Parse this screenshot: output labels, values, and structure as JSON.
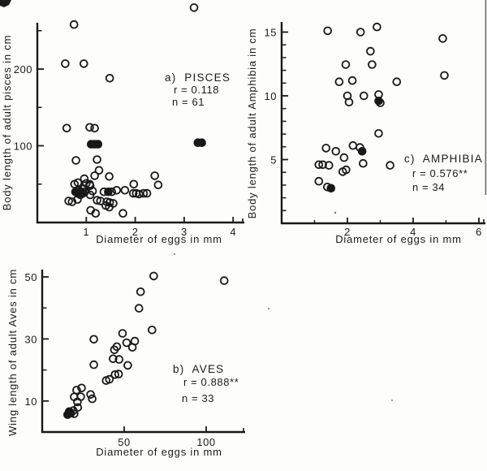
{
  "figure": {
    "background": "#fdfdfc",
    "ink_color": "#181818"
  },
  "chart_data": [
    {
      "id": "pisces",
      "type": "scatter",
      "panel_label": "a)  PISCES",
      "r_label": "r = 0.118",
      "n_label": "n = 61",
      "xlabel": "Diameter of eggs in mm",
      "ylabel": "Body length of adult pisces in cm",
      "xlim": [
        0,
        4.25
      ],
      "ylim": [
        0,
        260
      ],
      "xticks": [
        1,
        2,
        3,
        4
      ],
      "xticks_minor": [],
      "yticks_major": [
        100,
        200
      ],
      "yticks_minor": [
        50,
        150,
        250
      ],
      "legend_position": "none",
      "grid": false,
      "points": [
        [
          0.75,
          258
        ],
        [
          3.2,
          280
        ],
        [
          0.57,
          207
        ],
        [
          0.95,
          207
        ],
        [
          1.48,
          188
        ],
        [
          0.6,
          123
        ],
        [
          1.07,
          124
        ],
        [
          1.17,
          123
        ],
        [
          1.1,
          102,
          1
        ],
        [
          1.17,
          102,
          1
        ],
        [
          1.24,
          102,
          1
        ],
        [
          3.28,
          104,
          1
        ],
        [
          3.36,
          104,
          1
        ],
        [
          0.79,
          81
        ],
        [
          1.22,
          82
        ],
        [
          1.26,
          68
        ],
        [
          1.17,
          61
        ],
        [
          1.47,
          60
        ],
        [
          2.4,
          61
        ],
        [
          0.96,
          57
        ],
        [
          0.83,
          52
        ],
        [
          0.76,
          50
        ],
        [
          1.0,
          51
        ],
        [
          1.07,
          50
        ],
        [
          1.97,
          50
        ],
        [
          2.47,
          49
        ],
        [
          1.08,
          48
        ],
        [
          0.78,
          40,
          1
        ],
        [
          0.83,
          38,
          1
        ],
        [
          0.88,
          40,
          1
        ],
        [
          0.93,
          38,
          1
        ],
        [
          0.97,
          40
        ],
        [
          0.85,
          42
        ],
        [
          0.92,
          44
        ],
        [
          0.88,
          36
        ],
        [
          1.13,
          41
        ],
        [
          1.08,
          36
        ],
        [
          1.36,
          40
        ],
        [
          1.45,
          40,
          1
        ],
        [
          1.52,
          40
        ],
        [
          1.62,
          42
        ],
        [
          1.79,
          42
        ],
        [
          1.96,
          38
        ],
        [
          2.02,
          38
        ],
        [
          2.08,
          37
        ],
        [
          2.17,
          38
        ],
        [
          2.24,
          38
        ],
        [
          0.64,
          28
        ],
        [
          0.71,
          27
        ],
        [
          0.82,
          30
        ],
        [
          1.22,
          29
        ],
        [
          1.29,
          28
        ],
        [
          1.42,
          27
        ],
        [
          1.48,
          26
        ],
        [
          1.55,
          25
        ],
        [
          1.4,
          22
        ],
        [
          1.47,
          20
        ],
        [
          1.09,
          16
        ],
        [
          1.19,
          12
        ],
        [
          1.75,
          12
        ],
        [
          0.95,
          44
        ]
      ]
    },
    {
      "id": "aves",
      "type": "scatter",
      "panel_label": "b)  AVES",
      "r_label": "r = 0.888**",
      "n_label": "n = 33",
      "xlabel": "Diameter of eggs in mm",
      "ylabel": "Wing length of adult Aves in cm",
      "xlim": [
        0,
        124
      ],
      "ylim": [
        0,
        52
      ],
      "xticks": [
        50,
        100
      ],
      "xticks_minor": [],
      "yticks_major": [
        10,
        30,
        50
      ],
      "yticks_minor": [
        20,
        40
      ],
      "legend_position": "none",
      "grid": false,
      "points": [
        [
          68,
          50.3
        ],
        [
          111,
          48.8
        ],
        [
          60,
          45.2
        ],
        [
          59,
          39.9
        ],
        [
          67,
          32.9
        ],
        [
          49,
          31.8
        ],
        [
          31.5,
          29.9
        ],
        [
          51.5,
          28.8
        ],
        [
          56.5,
          29.3
        ],
        [
          45.5,
          27.5
        ],
        [
          55,
          27.3
        ],
        [
          44,
          26.5
        ],
        [
          31.5,
          21.7
        ],
        [
          43.2,
          23.6
        ],
        [
          46.9,
          23.4
        ],
        [
          52.2,
          21.5
        ],
        [
          41,
          17.0
        ],
        [
          44.4,
          18.5
        ],
        [
          46.6,
          18.7
        ],
        [
          39,
          16.6
        ],
        [
          21,
          13.5
        ],
        [
          24,
          14.2
        ],
        [
          19.5,
          11.3
        ],
        [
          23.5,
          11.4
        ],
        [
          29.5,
          12.1
        ],
        [
          30.5,
          10.7
        ],
        [
          21.5,
          9.7
        ],
        [
          21.7,
          7.9
        ],
        [
          15.5,
          5.6,
          1
        ],
        [
          16.5,
          6.6,
          1
        ],
        [
          17.5,
          6.1,
          1
        ],
        [
          19,
          6.9
        ],
        [
          19.5,
          5.9
        ]
      ]
    },
    {
      "id": "amphibia",
      "type": "scatter",
      "panel_label": "c)  AMPHIBIA",
      "r_label": "r = 0.576**",
      "n_label": "n = 34",
      "xlabel": "Diameter of eggs in mm",
      "ylabel": "Body length of adult Amphibia in cm",
      "xlim": [
        0,
        6.2
      ],
      "ylim": [
        0,
        15.8
      ],
      "xticks": [
        2,
        4,
        6
      ],
      "xticks_minor": [
        1,
        3,
        5
      ],
      "yticks_major": [
        5,
        10,
        15
      ],
      "yticks_minor": [
        1,
        2,
        3,
        4,
        6,
        7,
        8,
        9,
        11,
        12,
        13,
        14
      ],
      "legend_position": "none",
      "grid": false,
      "points": [
        [
          1.4,
          15.1
        ],
        [
          2.4,
          15.0
        ],
        [
          2.9,
          15.4
        ],
        [
          4.9,
          14.5
        ],
        [
          2.7,
          13.5
        ],
        [
          1.95,
          12.45
        ],
        [
          2.75,
          12.45
        ],
        [
          1.75,
          11.1
        ],
        [
          2.15,
          11.2
        ],
        [
          3.5,
          11.1
        ],
        [
          4.95,
          11.6
        ],
        [
          2.0,
          10.0
        ],
        [
          2.5,
          10.0
        ],
        [
          2.95,
          10.1
        ],
        [
          2.05,
          9.5
        ],
        [
          2.95,
          9.6,
          1
        ],
        [
          3.0,
          9.45
        ],
        [
          2.95,
          7.05
        ],
        [
          1.35,
          5.9
        ],
        [
          1.65,
          5.65
        ],
        [
          1.9,
          5.15
        ],
        [
          2.17,
          6.1
        ],
        [
          2.38,
          5.95
        ],
        [
          2.45,
          5.65,
          1
        ],
        [
          2.48,
          4.7
        ],
        [
          1.13,
          4.6
        ],
        [
          1.25,
          4.6
        ],
        [
          1.44,
          4.55
        ],
        [
          3.3,
          4.55
        ],
        [
          1.86,
          4.05
        ],
        [
          1.96,
          4.2
        ],
        [
          1.13,
          3.3
        ],
        [
          1.39,
          2.85
        ],
        [
          1.5,
          2.75,
          1
        ]
      ]
    }
  ]
}
